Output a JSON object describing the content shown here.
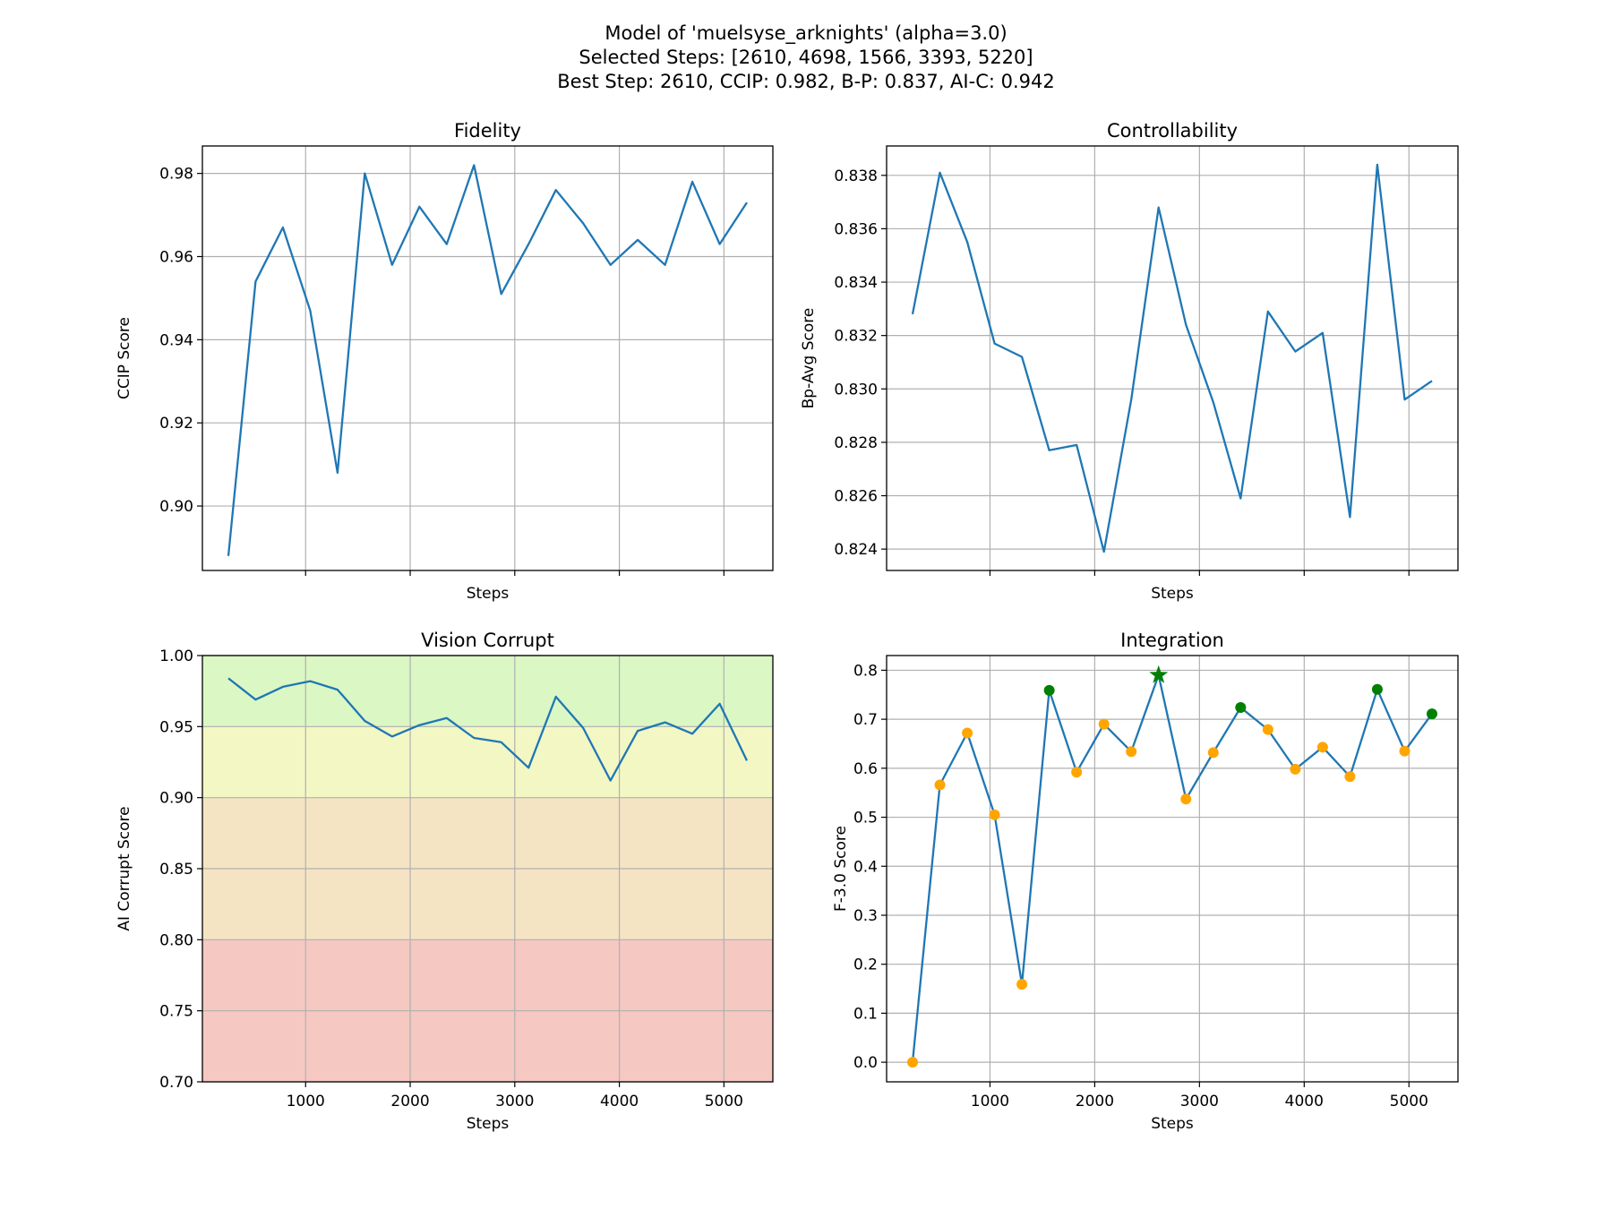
{
  "title_lines": [
    "Model of 'muelsyse_arknights' (alpha=3.0)",
    "Selected Steps: [2610, 4698, 1566, 3393, 5220]",
    "Best Step: 2610, CCIP: 0.982, B-P: 0.837, AI-C: 0.942"
  ],
  "colors": {
    "line": "#1f77b4",
    "point_default": "#ffa500",
    "point_selected": "#008000",
    "best_star": "#008000",
    "grid": "#b0b0b0",
    "bands": {
      "green": "#dbf7c4",
      "yellow": "#f3f7c4",
      "orange": "#f5e4c4",
      "red": "#f5c8c2"
    }
  },
  "chart_data": [
    {
      "type": "line",
      "title": "Fidelity",
      "xlabel": "Steps",
      "ylabel": "CCIP Score",
      "x": [
        261,
        522,
        783,
        1044,
        1305,
        1566,
        1827,
        2088,
        2349,
        2610,
        2871,
        3132,
        3393,
        3654,
        3915,
        4176,
        4437,
        4698,
        4959,
        5220
      ],
      "values": [
        0.888,
        0.954,
        0.967,
        0.947,
        0.908,
        0.98,
        0.958,
        0.972,
        0.963,
        0.982,
        0.951,
        0.963,
        0.976,
        0.968,
        0.958,
        0.964,
        0.958,
        0.978,
        0.963,
        0.973
      ],
      "xlim": [
        13,
        5468
      ],
      "ylim": [
        0.8845,
        0.9866
      ],
      "xticks": [
        1000,
        2000,
        3000,
        4000,
        5000
      ],
      "xticklabels_shown": false,
      "yticks": [
        0.9,
        0.92,
        0.94,
        0.96,
        0.98
      ],
      "yticklabels": [
        "0.90",
        "0.92",
        "0.94",
        "0.96",
        "0.98"
      ],
      "grid": true
    },
    {
      "type": "line",
      "title": "Controllability",
      "xlabel": "Steps",
      "ylabel": "Bp-Avg Score",
      "x": [
        261,
        522,
        783,
        1044,
        1305,
        1566,
        1827,
        2088,
        2349,
        2610,
        2871,
        3132,
        3393,
        3654,
        3915,
        4176,
        4437,
        4698,
        4959,
        5220
      ],
      "values": [
        0.8328,
        0.8381,
        0.8355,
        0.8317,
        0.8312,
        0.8277,
        0.8279,
        0.8239,
        0.8296,
        0.8368,
        0.8324,
        0.8295,
        0.8259,
        0.8329,
        0.8314,
        0.8321,
        0.8252,
        0.8384,
        0.8296,
        0.8303
      ],
      "xlim": [
        13,
        5468
      ],
      "ylim": [
        0.8232,
        0.8391
      ],
      "xticks": [
        1000,
        2000,
        3000,
        4000,
        5000
      ],
      "xticklabels_shown": false,
      "yticks": [
        0.824,
        0.826,
        0.828,
        0.83,
        0.832,
        0.834,
        0.836,
        0.838
      ],
      "yticklabels": [
        "0.824",
        "0.826",
        "0.828",
        "0.830",
        "0.832",
        "0.834",
        "0.836",
        "0.838"
      ],
      "grid": true
    },
    {
      "type": "line",
      "title": "Vision Corrupt",
      "xlabel": "Steps",
      "ylabel": "AI Corrupt Score",
      "x": [
        261,
        522,
        783,
        1044,
        1305,
        1566,
        1827,
        2088,
        2349,
        2610,
        2871,
        3132,
        3393,
        3654,
        3915,
        4176,
        4437,
        4698,
        4959,
        5220
      ],
      "values": [
        0.984,
        0.969,
        0.978,
        0.982,
        0.976,
        0.954,
        0.943,
        0.951,
        0.956,
        0.942,
        0.939,
        0.921,
        0.971,
        0.949,
        0.912,
        0.947,
        0.953,
        0.945,
        0.966,
        0.926
      ],
      "xlim": [
        13,
        5468
      ],
      "ylim": [
        0.7,
        1.0
      ],
      "xticks": [
        1000,
        2000,
        3000,
        4000,
        5000
      ],
      "xticklabels": [
        "1000",
        "2000",
        "3000",
        "4000",
        "5000"
      ],
      "xticklabels_shown": true,
      "yticks": [
        0.7,
        0.75,
        0.8,
        0.85,
        0.9,
        0.95,
        1.0
      ],
      "yticklabels": [
        "0.70",
        "0.75",
        "0.80",
        "0.85",
        "0.90",
        "0.95",
        "1.00"
      ],
      "grid": true,
      "bands": [
        {
          "from": 0.95,
          "to": 1.0,
          "color": "green"
        },
        {
          "from": 0.9,
          "to": 0.95,
          "color": "yellow"
        },
        {
          "from": 0.8,
          "to": 0.9,
          "color": "orange"
        },
        {
          "from": 0.7,
          "to": 0.8,
          "color": "red"
        }
      ]
    },
    {
      "type": "line+scatter",
      "title": "Integration",
      "xlabel": "Steps",
      "ylabel": "F-3.0 Score",
      "x": [
        261,
        522,
        783,
        1044,
        1305,
        1566,
        1827,
        2088,
        2349,
        2610,
        2871,
        3132,
        3393,
        3654,
        3915,
        4176,
        4437,
        4698,
        4959,
        5220
      ],
      "values": [
        0.0,
        0.566,
        0.672,
        0.505,
        0.159,
        0.759,
        0.592,
        0.69,
        0.634,
        0.79,
        0.537,
        0.632,
        0.724,
        0.679,
        0.598,
        0.643,
        0.583,
        0.761,
        0.635,
        0.711
      ],
      "selected_steps": [
        2610,
        4698,
        1566,
        3393,
        5220
      ],
      "best_step": 2610,
      "xlim": [
        13,
        5468
      ],
      "ylim": [
        -0.04,
        0.83
      ],
      "xticks": [
        1000,
        2000,
        3000,
        4000,
        5000
      ],
      "xticklabels": [
        "1000",
        "2000",
        "3000",
        "4000",
        "5000"
      ],
      "xticklabels_shown": true,
      "yticks": [
        0,
        0.1,
        0.2,
        0.3,
        0.4,
        0.5,
        0.6,
        0.7,
        0.8
      ],
      "yticklabels": [
        "0.0",
        "0.1",
        "0.2",
        "0.3",
        "0.4",
        "0.5",
        "0.6",
        "0.7",
        "0.8"
      ],
      "grid": true
    }
  ]
}
